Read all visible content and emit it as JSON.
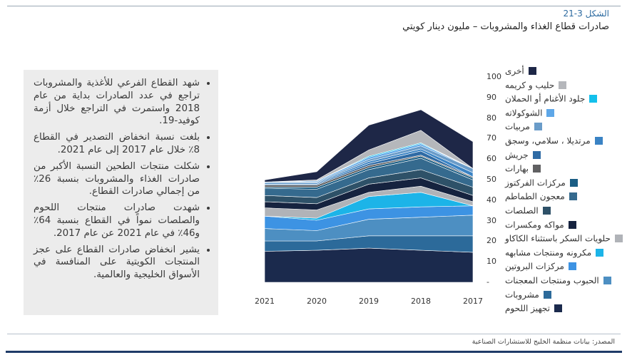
{
  "figure": {
    "label": "الشكل 3-21",
    "title": "صادرات قطاع الغذاء والمشروبات – مليون دينار كويتي"
  },
  "bullets": [
    "شهد القطاع الفرعي للأغذية والمشروبات تراجع في عدد الصادرات بداية من عام 2018 واستمرت في التراجع خلال أزمة كوفيد-19.",
    "بلغت نسبة انخفاض التصدير في القطاع 8٪ خلال عام 2017 إلى عام 2021.",
    "شكلت منتجات الطحين النسبة الأكبر من صادرات الغذاء والمشروبات بنسبة 26٪ من إجمالي صادرات القطاع.",
    "شهدت صادرات منتجات اللحوم والصلصات نمواً في القطاع بنسبة 64٪ و46٪ في عام 2021 عن عام 2017.",
    "يشير انخفاض صادرات القطاع على عجز المنتجات الكويتية على المنافسة في الأسواق الخليجية والعالمية."
  ],
  "source": "المصدر: بيانات منظمة الخليج للاستشارات الصناعية",
  "chart_data": {
    "type": "area",
    "stacked": true,
    "x": [
      "2021",
      "2020",
      "2019",
      "2018",
      "2017"
    ],
    "y_ticks": [
      "-",
      "10",
      "20",
      "30",
      "40",
      "50",
      "60",
      "70",
      "80",
      "90",
      "100"
    ],
    "ylim": [
      0,
      100
    ],
    "grid": false,
    "legend_position": "right",
    "series": [
      {
        "name": "تجهيز اللحوم",
        "color": "#1b2a4d",
        "values": [
          15,
          15.5,
          16.5,
          15.5,
          14.5
        ]
      },
      {
        "name": "مشروبات",
        "color": "#2c6a9a",
        "values": [
          5,
          4.5,
          6,
          7,
          8
        ]
      },
      {
        "name": "الحبوب ومنتجات المعجنات",
        "color": "#4d8fc2",
        "values": [
          6,
          5,
          8,
          9,
          10
        ]
      },
      {
        "name": "مركزات البروتين",
        "color": "#3d93e3",
        "values": [
          6,
          5,
          5,
          5,
          4.5
        ]
      },
      {
        "name": "مكرونه ومنتجات مشابهه",
        "color": "#1cb4e8",
        "values": [
          0,
          1,
          6,
          7,
          0
        ]
      },
      {
        "name": "حلويات السكر باستثناء الكاكاو",
        "color": "#b0b3b8",
        "values": [
          4,
          4,
          2,
          3,
          2
        ]
      },
      {
        "name": "مواكه ومكسرات",
        "color": "#16233f",
        "values": [
          3,
          3,
          4,
          4,
          3
        ]
      },
      {
        "name": "الصلصات",
        "color": "#2e5168",
        "values": [
          3,
          3,
          3,
          4,
          4
        ]
      },
      {
        "name": "معجون الطماطم",
        "color": "#356a8e",
        "values": [
          3.5,
          4,
          4,
          5.5,
          3.5
        ]
      },
      {
        "name": "مركزات الفركتوز",
        "color": "#1a5d84",
        "values": [
          0.5,
          1,
          1,
          1,
          1
        ]
      },
      {
        "name": "بهارات",
        "color": "#606062",
        "values": [
          1,
          1,
          1,
          0.5,
          0.5
        ]
      },
      {
        "name": "جريش",
        "color": "#2f6ba5",
        "values": [
          0.5,
          0.5,
          1,
          2,
          0
        ]
      },
      {
        "name": "مرتديلا ، سلامي، وسجق",
        "color": "#3a83c4",
        "values": [
          0.5,
          0.5,
          1,
          1,
          2
        ]
      },
      {
        "name": "مربيات",
        "color": "#6a9cc9",
        "values": [
          0.5,
          0.5,
          1,
          1.5,
          2
        ]
      },
      {
        "name": "الشوكولاته",
        "color": "#5ea7e8",
        "values": [
          0,
          0.5,
          1,
          1,
          0
        ]
      },
      {
        "name": "جلود الأغنام أو الحملان",
        "color": "#14c0ec",
        "values": [
          0,
          0,
          0.5,
          0.5,
          0
        ]
      },
      {
        "name": "حليب و كريمه",
        "color": "#b5b7bb",
        "values": [
          0,
          0.5,
          3,
          6,
          0
        ]
      },
      {
        "name": "أخرى",
        "color": "#1e2747",
        "values": [
          1,
          4,
          12,
          10,
          13
        ]
      }
    ]
  }
}
